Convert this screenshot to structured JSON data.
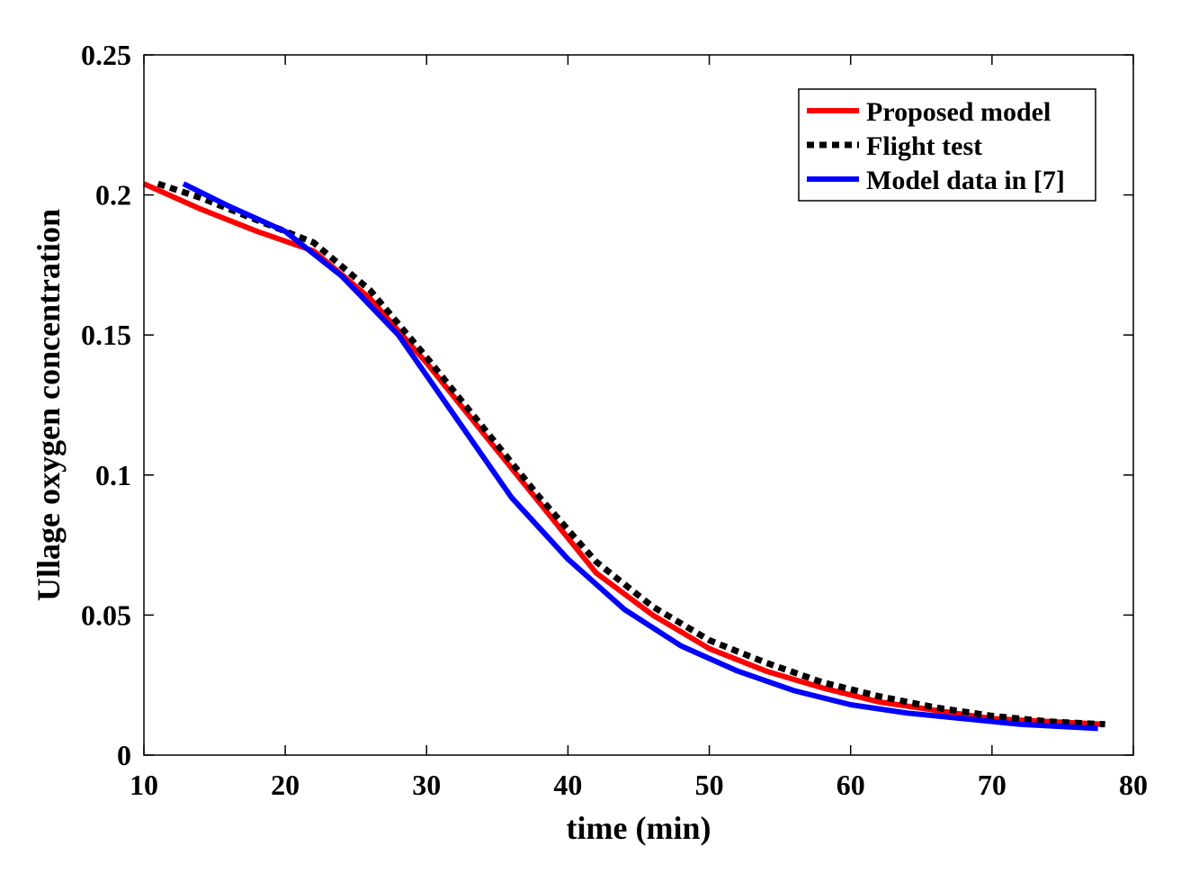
{
  "chart_data": {
    "type": "line",
    "title": "",
    "xlabel": "time (min)",
    "ylabel": "Ullage oxygen concentration",
    "xlim": [
      10,
      80
    ],
    "ylim": [
      0,
      0.25
    ],
    "xticks": [
      10,
      20,
      30,
      40,
      50,
      60,
      70,
      80
    ],
    "yticks": [
      0,
      0.05,
      0.1,
      0.15,
      0.2,
      0.25
    ],
    "xtick_labels": [
      "10",
      "20",
      "30",
      "40",
      "50",
      "60",
      "70",
      "80"
    ],
    "ytick_labels": [
      "0",
      "0.05",
      "0.1",
      "0.15",
      "0.2",
      "0.25"
    ],
    "grid": false,
    "legend_position": "top-right",
    "series": [
      {
        "name": "Proposed model",
        "color": "#ff0000",
        "style": "solid",
        "x": [
          10,
          14,
          18,
          22,
          26,
          30,
          34,
          38,
          42,
          46,
          50,
          54,
          58,
          62,
          66,
          70,
          74,
          78
        ],
        "y": [
          0.204,
          0.195,
          0.187,
          0.18,
          0.163,
          0.14,
          0.115,
          0.09,
          0.065,
          0.05,
          0.038,
          0.03,
          0.024,
          0.019,
          0.016,
          0.013,
          0.012,
          0.011
        ]
      },
      {
        "name": "Flight test",
        "color": "#000000",
        "style": "dotted",
        "x": [
          11,
          14,
          18,
          22,
          26,
          30,
          34,
          38,
          42,
          46,
          50,
          54,
          58,
          62,
          66,
          70,
          74,
          78
        ],
        "y": [
          0.204,
          0.199,
          0.191,
          0.183,
          0.166,
          0.142,
          0.117,
          0.092,
          0.069,
          0.053,
          0.041,
          0.033,
          0.026,
          0.021,
          0.017,
          0.014,
          0.012,
          0.011
        ]
      },
      {
        "name": "Model data in [7]",
        "color": "#0000ff",
        "style": "solid",
        "x": [
          12.8,
          16,
          20,
          24,
          28,
          32,
          36,
          40,
          44,
          48,
          52,
          56,
          60,
          64,
          68,
          72,
          77.5
        ],
        "y": [
          0.204,
          0.196,
          0.187,
          0.171,
          0.15,
          0.121,
          0.092,
          0.07,
          0.052,
          0.039,
          0.03,
          0.023,
          0.018,
          0.015,
          0.013,
          0.011,
          0.0095
        ]
      }
    ]
  }
}
